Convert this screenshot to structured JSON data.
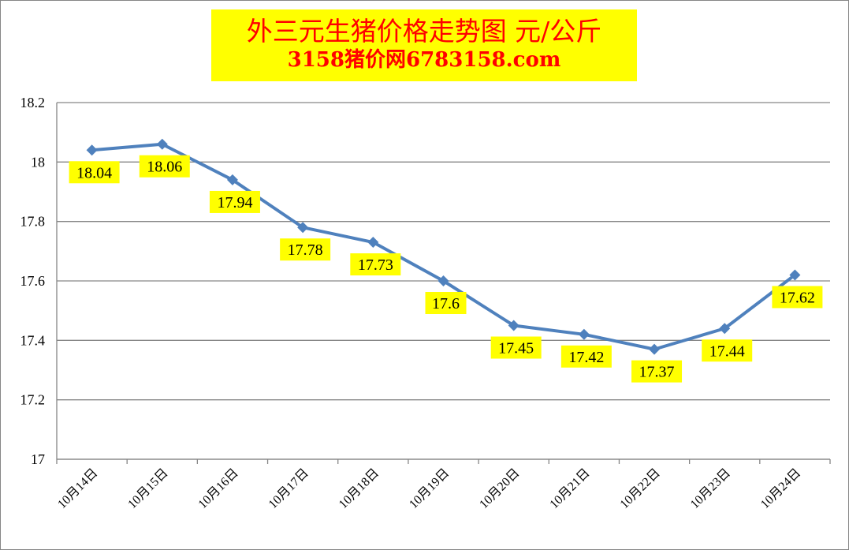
{
  "chart_data": {
    "type": "line",
    "title": "外三元生猪价格走势图 元/公斤",
    "subtitle": "3158猪价网6783158.com",
    "xlabel": "",
    "ylabel": "",
    "categories": [
      "10月14日",
      "10月15日",
      "10月16日",
      "10月17日",
      "10月18日",
      "10月19日",
      "10月20日",
      "10月21日",
      "10月22日",
      "10月23日",
      "10月24日"
    ],
    "series": [
      {
        "values": [
          18.04,
          18.06,
          17.94,
          17.78,
          17.73,
          17.6,
          17.45,
          17.42,
          17.37,
          17.44,
          17.62
        ]
      }
    ],
    "data_labels": [
      "18.04",
      "18.06",
      "17.94",
      "17.78",
      "17.73",
      "17.6",
      "17.45",
      "17.42",
      "17.37",
      "17.44",
      "17.62"
    ],
    "ylim": [
      17,
      18.2
    ],
    "yticks": [
      17,
      17.2,
      17.4,
      17.6,
      17.8,
      18,
      18.2
    ],
    "ytick_labels": [
      "17",
      "17.2",
      "17.4",
      "17.6",
      "17.8",
      "18",
      "18.2"
    ],
    "grid": "horizontal",
    "line_color": "#4f81bd",
    "label_bg_color": "#ffff00",
    "title_color": "#ff0000",
    "title_bg_color": "#ffff00"
  }
}
